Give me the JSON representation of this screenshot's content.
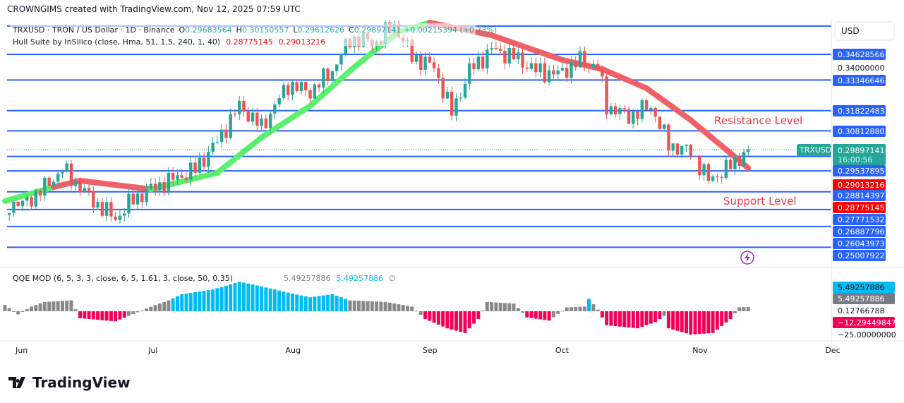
{
  "credit": "CROWNGIMS created with TradingView.com, Nov 12, 2025 07:59 UTC",
  "legend": {
    "symbol": "TRXUSD · TRON / US Dollar · 1D · Binance",
    "o_label": "O",
    "o": "0.29683564",
    "h_label": "H",
    "h": "0.30150557",
    "l_label": "L",
    "l": "0.29612626",
    "c_label": "C",
    "c": "0.29897141",
    "change": "+0.00215394 (+0.73%)",
    "hull": "Hull Suite by InSilico (close, Hma, 51, 1.5, 240, 1, 40)",
    "hull_v1": "0.28775145",
    "hull_v2": "0.29013216",
    "qqe": "QQE MOD (6, 5, 3, 3, close, 6, 5, 1.61, 3, close, 50, 0.35)",
    "qqe_v1": "5.49257886",
    "qqe_v2": "5.49257886",
    "qqe_v3": "∅"
  },
  "currency_button": "USD",
  "annotations": {
    "resistance": "Resistance Level",
    "support": "Support Level"
  },
  "symbol_tag": "TRXUSD",
  "current_price": {
    "price": "0.29897141",
    "countdown": "16:00:56"
  },
  "colors": {
    "up": "#26a69a",
    "down": "#ef5350",
    "hull_up": "#5bef6e",
    "hull_down": "#f06066",
    "level": "#2962ff",
    "qqe_blue": "#00bcf2",
    "qqe_gray": "#888888",
    "qqe_red": "#f50057",
    "hull_label": "#ff0000"
  },
  "logo_text": "TradingView",
  "chart_data": [
    {
      "type": "candlestick",
      "ylim": [
        0.235,
        0.362
      ],
      "levels": [
        0.3604,
        0.34628566,
        0.33346646,
        0.31822483,
        0.3081288,
        0.29537895,
        0.28814397,
        0.27771532,
        0.26887796,
        0.26043973,
        0.25007922
      ],
      "price_labels": [
        {
          "text": "0.34628566",
          "kind": "level"
        },
        {
          "text": "0.34000000",
          "kind": "tick"
        },
        {
          "text": "0.33346646",
          "kind": "level"
        },
        {
          "text": "0.31822483",
          "kind": "level"
        },
        {
          "text": "0.30812880",
          "kind": "level"
        },
        {
          "text": "0.29537895",
          "kind": "level"
        },
        {
          "text": "0.29013216",
          "kind": "hull"
        },
        {
          "text": "0.28814397",
          "kind": "level"
        },
        {
          "text": "0.28775145",
          "kind": "hull"
        },
        {
          "text": "0.27771532",
          "kind": "level"
        },
        {
          "text": "0.26887796",
          "kind": "level"
        },
        {
          "text": "0.26043973",
          "kind": "level"
        },
        {
          "text": "0.25007922",
          "kind": "level"
        }
      ],
      "x_ticks": [
        "Jun",
        "Jul",
        "Aug",
        "Sep",
        "Oct",
        "Nov",
        "Dec"
      ],
      "close_keypoints": [
        [
          "May 29",
          0.272
        ],
        [
          "Jun 1",
          0.2713
        ],
        [
          "Jun 6",
          0.28
        ],
        [
          "Jun 10",
          0.2889
        ],
        [
          "Jun 14",
          0.28
        ],
        [
          "Jun 17",
          0.2731
        ],
        [
          "Jun 22",
          0.2643
        ],
        [
          "Jun 26",
          0.274
        ],
        [
          "Jul 1",
          0.2801
        ],
        [
          "Jul 6",
          0.285
        ],
        [
          "Jul 10",
          0.2889
        ],
        [
          "Jul 15",
          0.303
        ],
        [
          "Jul 20",
          0.3206
        ],
        [
          "Jul 25",
          0.31
        ],
        [
          "Jul 31",
          0.3312
        ],
        [
          "Aug 5",
          0.3276
        ],
        [
          "Aug 10",
          0.3382
        ],
        [
          "Aug 14",
          0.354
        ],
        [
          "Aug 20",
          0.3523
        ],
        [
          "Aug 24",
          0.3611
        ],
        [
          "Aug 28",
          0.3452
        ],
        [
          "Sep 2",
          0.34
        ],
        [
          "Sep 6",
          0.3171
        ],
        [
          "Sep 10",
          0.3382
        ],
        [
          "Sep 15",
          0.3487
        ],
        [
          "Sep 20",
          0.3452
        ],
        [
          "Sep 25",
          0.3382
        ],
        [
          "Sep 30",
          0.3364
        ],
        [
          "Oct 5",
          0.3434
        ],
        [
          "Oct 9",
          0.34
        ],
        [
          "Oct 11",
          0.3206
        ],
        [
          "Oct 16",
          0.3153
        ],
        [
          "Oct 21",
          0.3206
        ],
        [
          "Oct 25",
          0.3012
        ],
        [
          "Oct 30",
          0.2977
        ],
        [
          "Nov 3",
          0.2836
        ],
        [
          "Nov 7",
          0.2889
        ],
        [
          "Nov 12",
          0.29897141
        ]
      ],
      "hull": [
        [
          "May 28",
          0.2731,
          "up"
        ],
        [
          "Jun 8",
          0.2801,
          "up"
        ],
        [
          "Jun 14",
          0.2833,
          "down"
        ],
        [
          "Jun 30",
          0.279,
          "down"
        ],
        [
          "Jul 15",
          0.2872,
          "up"
        ],
        [
          "Jul 25",
          0.3048,
          "up"
        ],
        [
          "Aug 5",
          0.3206,
          "up"
        ],
        [
          "Aug 15",
          0.34,
          "up"
        ],
        [
          "Aug 25",
          0.3576,
          "up"
        ],
        [
          "Sep 1",
          0.3621,
          "up"
        ],
        [
          "Sep 15",
          0.3558,
          "down"
        ],
        [
          "Oct 1",
          0.3435,
          "down"
        ],
        [
          "Oct 10",
          0.3389,
          "down"
        ],
        [
          "Oct 20",
          0.3294,
          "down"
        ],
        [
          "Oct 30",
          0.3135,
          "down"
        ],
        [
          "Nov 12",
          0.2896,
          "down"
        ]
      ]
    },
    {
      "type": "histogram",
      "name": "QQE MOD",
      "y_labels": [
        {
          "text": "5.49257886",
          "kind": "blue"
        },
        {
          "text": "5.49257886",
          "kind": "gray"
        },
        {
          "text": "0.12766788",
          "kind": "tick"
        },
        {
          "text": "−12.29449847",
          "kind": "red"
        },
        {
          "text": "−25.00000000",
          "kind": "tick"
        }
      ],
      "keypoints": [
        [
          "May 28",
          8
        ],
        [
          "May 31",
          -4
        ],
        [
          "Jun 3",
          6
        ],
        [
          "Jun 6",
          12
        ],
        [
          "Jun 12",
          14
        ],
        [
          "Jun 14",
          -9
        ],
        [
          "Jun 22",
          -13
        ],
        [
          "Jun 25",
          -6
        ],
        [
          "Jul 1",
          8
        ],
        [
          "Jul 4",
          14
        ],
        [
          "Jul 7",
          22
        ],
        [
          "Jul 14",
          28
        ],
        [
          "Jul 20",
          38
        ],
        [
          "Jul 25",
          32
        ],
        [
          "Jul 31",
          24
        ],
        [
          "Aug 5",
          18
        ],
        [
          "Aug 10",
          22
        ],
        [
          "Aug 14",
          14
        ],
        [
          "Aug 22",
          12
        ],
        [
          "Aug 28",
          6
        ],
        [
          "Aug 31",
          -10
        ],
        [
          "Sep 5",
          -22
        ],
        [
          "Sep 9",
          -28
        ],
        [
          "Sep 12",
          -10
        ],
        [
          "Sep 14",
          12
        ],
        [
          "Sep 20",
          10
        ],
        [
          "Sep 23",
          -8
        ],
        [
          "Sep 28",
          -12
        ],
        [
          "Oct 2",
          5
        ],
        [
          "Oct 6",
          6
        ],
        [
          "Oct 7",
          16
        ],
        [
          "Oct 9",
          2
        ],
        [
          "Oct 11",
          -18
        ],
        [
          "Oct 18",
          -22
        ],
        [
          "Oct 22",
          -14
        ],
        [
          "Oct 24",
          -6
        ],
        [
          "Oct 25",
          -22
        ],
        [
          "Oct 30",
          -30
        ],
        [
          "Nov 4",
          -28
        ],
        [
          "Nov 8",
          -10
        ],
        [
          "Nov 10",
          5
        ],
        [
          "Nov 12",
          5.49
        ]
      ]
    }
  ]
}
